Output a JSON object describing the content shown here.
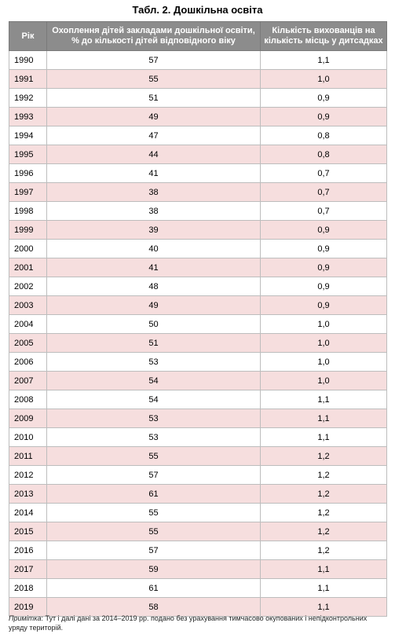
{
  "title": "Табл. 2. Дошкільна освіта",
  "table": {
    "headers": [
      "Рік",
      "Охоплення дітей закладами дошкільної освіти, % до кількості дітей відповідного віку",
      "Кількість вихованців на кількість місць у дитсадках"
    ],
    "rows": [
      [
        "1990",
        "57",
        "1,1"
      ],
      [
        "1991",
        "55",
        "1,0"
      ],
      [
        "1992",
        "51",
        "0,9"
      ],
      [
        "1993",
        "49",
        "0,9"
      ],
      [
        "1994",
        "47",
        "0,8"
      ],
      [
        "1995",
        "44",
        "0,8"
      ],
      [
        "1996",
        "41",
        "0,7"
      ],
      [
        "1997",
        "38",
        "0,7"
      ],
      [
        "1998",
        "38",
        "0,7"
      ],
      [
        "1999",
        "39",
        "0,9"
      ],
      [
        "2000",
        "40",
        "0,9"
      ],
      [
        "2001",
        "41",
        "0,9"
      ],
      [
        "2002",
        "48",
        "0,9"
      ],
      [
        "2003",
        "49",
        "0,9"
      ],
      [
        "2004",
        "50",
        "1,0"
      ],
      [
        "2005",
        "51",
        "1,0"
      ],
      [
        "2006",
        "53",
        "1,0"
      ],
      [
        "2007",
        "54",
        "1,0"
      ],
      [
        "2008",
        "54",
        "1,1"
      ],
      [
        "2009",
        "53",
        "1,1"
      ],
      [
        "2010",
        "53",
        "1,1"
      ],
      [
        "2011",
        "55",
        "1,2"
      ],
      [
        "2012",
        "57",
        "1,2"
      ],
      [
        "2013",
        "61",
        "1,2"
      ],
      [
        "2014",
        "55",
        "1,2"
      ],
      [
        "2015",
        "55",
        "1,2"
      ],
      [
        "2016",
        "57",
        "1,2"
      ],
      [
        "2017",
        "59",
        "1,1"
      ],
      [
        "2018",
        "61",
        "1,1"
      ],
      [
        "2019",
        "58",
        "1,1"
      ]
    ]
  },
  "note": {
    "label": "Примітка",
    "text": ": Тут і далі дані за 2014–2019 рр. подано без урахування тимчасово окупованих і непідконтрольних уряду територій."
  },
  "colors": {
    "header_bg": "#8c8c8c",
    "alt_row_bg": "#f6dede"
  }
}
